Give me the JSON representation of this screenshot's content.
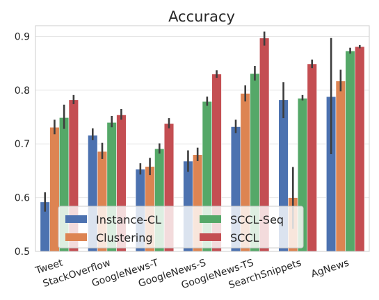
{
  "chart_data": {
    "type": "bar",
    "title": "Accuracy",
    "xlabel": "",
    "ylabel": "",
    "ylim": [
      0.5,
      0.92
    ],
    "yticks": [
      0.5,
      0.6,
      0.7,
      0.8,
      0.9
    ],
    "ytick_labels": [
      "0.5",
      "0.6",
      "0.7",
      "0.8",
      "0.9"
    ],
    "grid": true,
    "legend_position": "bottom-center",
    "categories": [
      "Tweet",
      "StackOverflow",
      "GoogleNews-T",
      "GoogleNews-S",
      "GoogleNews-TS",
      "SearchSnippets",
      "AgNews"
    ],
    "series": [
      {
        "name": "Instance-CL",
        "color": "#4c72b0",
        "values": [
          0.592,
          0.716,
          0.653,
          0.668,
          0.732,
          0.782,
          0.788
        ],
        "err_low": [
          0.574,
          0.707,
          0.643,
          0.648,
          0.72,
          0.748,
          0.681
        ],
        "err_high": [
          0.61,
          0.729,
          0.664,
          0.688,
          0.745,
          0.815,
          0.897
        ]
      },
      {
        "name": "Clustering",
        "color": "#dd8452",
        "values": [
          0.731,
          0.686,
          0.658,
          0.68,
          0.794,
          0.6,
          0.817
        ],
        "err_low": [
          0.718,
          0.672,
          0.642,
          0.668,
          0.779,
          0.542,
          0.798
        ],
        "err_high": [
          0.745,
          0.702,
          0.674,
          0.693,
          0.809,
          0.657,
          0.838
        ]
      },
      {
        "name": "SCCL-Seq",
        "color": "#55a868",
        "values": [
          0.749,
          0.74,
          0.691,
          0.779,
          0.831,
          0.785,
          0.873
        ],
        "err_low": [
          0.728,
          0.731,
          0.682,
          0.771,
          0.818,
          0.781,
          0.868
        ],
        "err_high": [
          0.773,
          0.752,
          0.701,
          0.788,
          0.845,
          0.791,
          0.879
        ]
      },
      {
        "name": "SCCL",
        "color": "#c44e52",
        "values": [
          0.782,
          0.754,
          0.738,
          0.83,
          0.897,
          0.849,
          0.881
        ],
        "err_low": [
          0.774,
          0.745,
          0.729,
          0.823,
          0.883,
          0.841,
          0.878
        ],
        "err_high": [
          0.791,
          0.765,
          0.748,
          0.837,
          0.909,
          0.857,
          0.884
        ]
      }
    ]
  }
}
